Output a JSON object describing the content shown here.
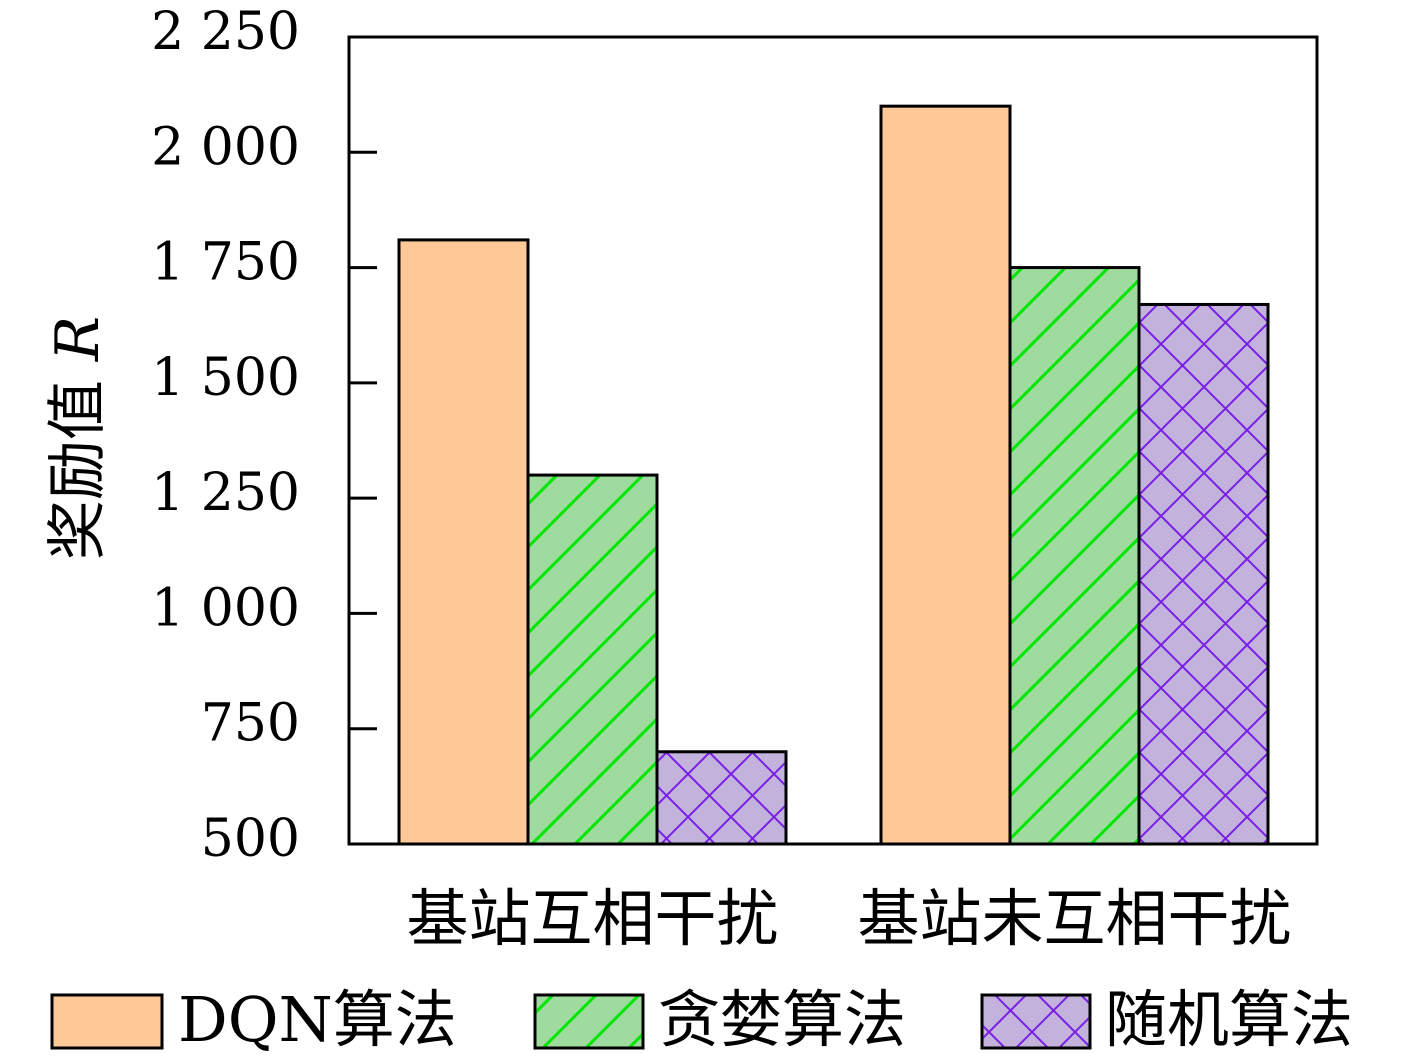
{
  "chart_data": {
    "type": "bar",
    "categories": [
      "基站互相干扰",
      "基站未互相干扰"
    ],
    "series": [
      {
        "name": "DQN算法",
        "values": [
          1810,
          2100
        ],
        "color": "#FFC896",
        "hatch": "none"
      },
      {
        "name": "贪婪算法",
        "values": [
          1300,
          1750
        ],
        "color": "#9FDB9F",
        "hatch": "diagonal",
        "hatch_color": "#00E600"
      },
      {
        "name": "随机算法",
        "values": [
          700,
          1670
        ],
        "color": "#C2B2DC",
        "hatch": "crosshatch",
        "hatch_color": "#7A1FE6"
      }
    ],
    "title": "",
    "xlabel": "",
    "ylabel": "奖励值 R",
    "ylim": [
      500,
      2250
    ],
    "yticks": [
      500,
      750,
      1000,
      1250,
      1500,
      1750,
      2000,
      2250
    ],
    "ytick_labels": [
      "500",
      "750",
      "1 000",
      "1 250",
      "1 500",
      "1 750",
      "2 000",
      "2 250"
    ],
    "legend": "bottom",
    "grid": false
  }
}
